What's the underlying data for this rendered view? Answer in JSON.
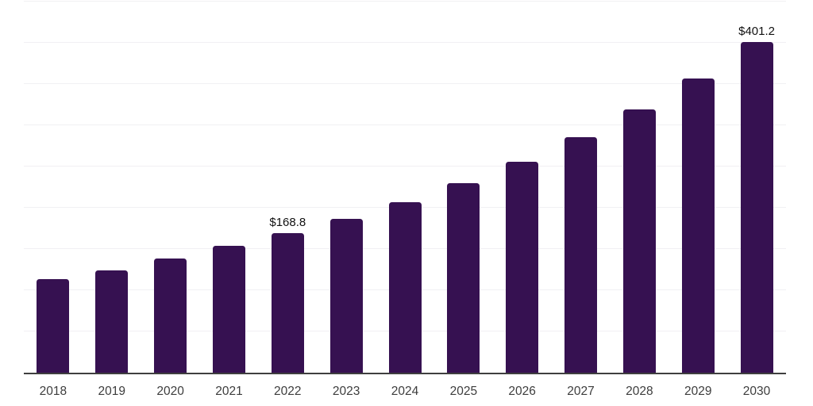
{
  "chart_data": {
    "type": "bar",
    "title": "",
    "categories": [
      "2018",
      "2019",
      "2020",
      "2021",
      "2022",
      "2023",
      "2024",
      "2025",
      "2026",
      "2027",
      "2028",
      "2029",
      "2030"
    ],
    "values": [
      113.5,
      124.4,
      138.5,
      154.0,
      168.8,
      186.9,
      207.1,
      230.2,
      256.1,
      286.0,
      319.5,
      357.0,
      401.2
    ],
    "data_labels": [
      "",
      "",
      "",
      "",
      "$168.8",
      "",
      "",
      "",
      "",
      "",
      "",
      "",
      "$401.2"
    ],
    "xlabel": "",
    "ylabel": "",
    "ylim": [
      0,
      450
    ],
    "grid_step": 50,
    "gridlines": "horizontal",
    "y_tick_labels_visible": false,
    "legend_position": "none",
    "colors": {
      "bar": "#361151",
      "axis_line": "#3f3f3f",
      "gridline": "#f1f0f3",
      "data_label": "#111111",
      "tick_label": "#3d3d3d",
      "background": "#ffffff"
    }
  }
}
